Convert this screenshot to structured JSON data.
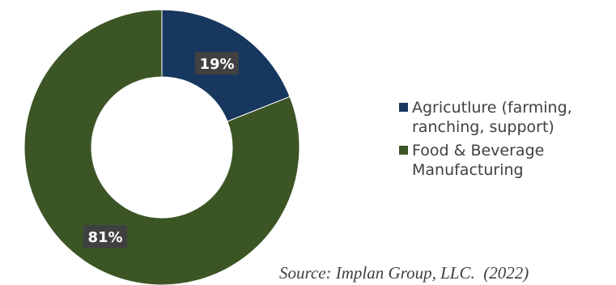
{
  "chart_data": {
    "type": "pie",
    "categories": [
      "Agricutlure (farming, ranching, support)",
      "Food & Beverage Manufacturing"
    ],
    "values": [
      19,
      81
    ],
    "labels": [
      "19%",
      "81%"
    ],
    "colors": [
      "#17375e",
      "#3b5525"
    ],
    "legend_position": "right",
    "source": "Source: Implan Group, LLC.  (2022)"
  },
  "legend": [
    {
      "line1": "Agricutlure (farming,",
      "line2": "ranching, support)",
      "color": "#17375e"
    },
    {
      "line1": "Food & Beverage",
      "line2": "Manufacturing",
      "color": "#3b5525"
    }
  ]
}
